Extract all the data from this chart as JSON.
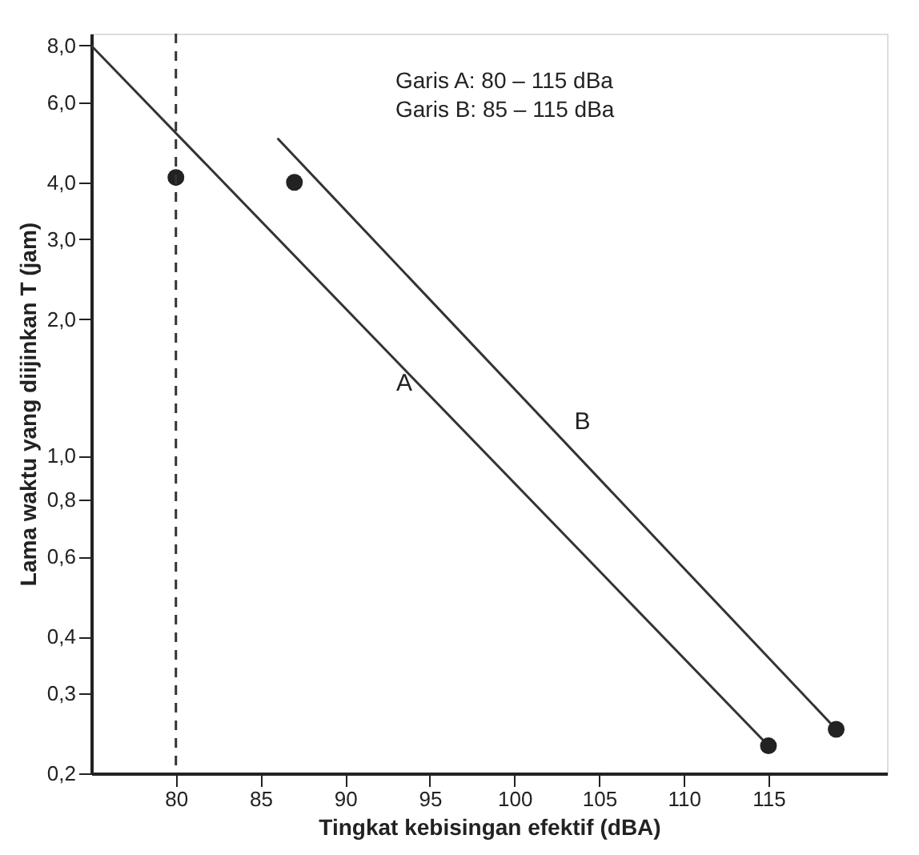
{
  "chart_data": {
    "type": "line",
    "xlabel": "Tingkat kebisingan efektif (dBA)",
    "ylabel": "Lama waktu yang diijinkan T (jam)",
    "annotations": [
      "Garis A: 80 – 115 dBa",
      "Garis B: 85 – 115 dBa"
    ],
    "log": "y",
    "grid": false,
    "legend": false,
    "marker": "none",
    "xlim": [
      75,
      122
    ],
    "xticks": [
      80,
      85,
      90,
      95,
      100,
      105,
      110,
      115
    ],
    "ylim": [
      0.2,
      8.5
    ],
    "yticks": [
      {
        "value": 0.2,
        "label": "0,2"
      },
      {
        "value": 0.3,
        "label": "0,3"
      },
      {
        "value": 0.4,
        "label": "0,4"
      },
      {
        "value": 0.6,
        "label": "0,6"
      },
      {
        "value": 0.8,
        "label": "0,8"
      },
      {
        "value": 1,
        "label": "1,0"
      },
      {
        "value": 2,
        "label": "2,0"
      },
      {
        "value": 3,
        "label": "3,0"
      },
      {
        "value": 4,
        "label": "4,0"
      },
      {
        "value": 6,
        "label": "6,0"
      },
      {
        "value": 8,
        "label": "8,0"
      }
    ],
    "ref_lines": [
      {
        "axis": "x",
        "value": 80,
        "line_style": "dashed",
        "color": "#333333"
      }
    ],
    "series": [
      {
        "name": "A",
        "type": "line",
        "color": "#333333",
        "x": [
          75,
          115
        ],
        "values": [
          8,
          0.23
        ]
      },
      {
        "name": "B",
        "type": "line",
        "color": "#333333",
        "x": [
          86,
          119
        ],
        "values": [
          5,
          0.25
        ]
      },
      {
        "type": "scatter",
        "marker": "circle",
        "color": "#222222",
        "x": [
          80,
          87,
          115,
          119
        ],
        "values": [
          4.1,
          4.0,
          0.23,
          0.25
        ]
      }
    ]
  }
}
